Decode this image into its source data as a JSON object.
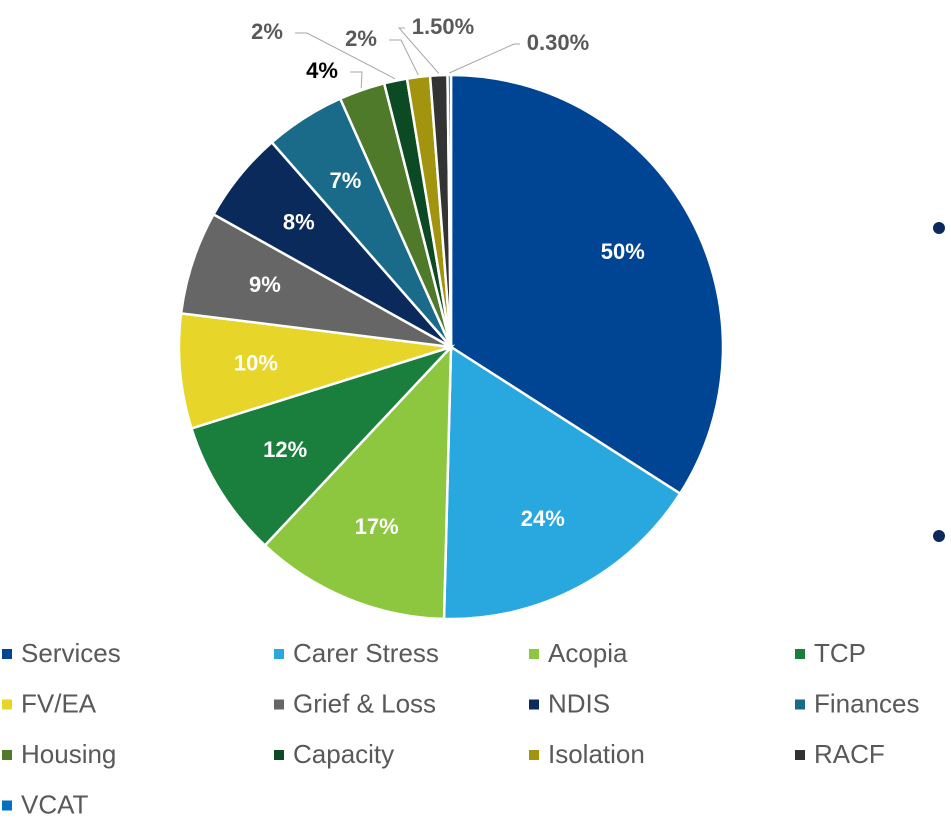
{
  "chart_data": {
    "type": "pie",
    "categories": [
      "Services",
      "Carer Stress",
      "Acopia",
      "TCP",
      "FV/EA",
      "Grief & Loss",
      "NDIS",
      "Finances",
      "Housing",
      "Capacity",
      "Isolation",
      "RACF",
      "VCAT"
    ],
    "values": [
      50,
      24,
      17,
      12,
      10,
      9,
      8,
      7,
      4,
      2,
      2,
      1.5,
      0.3
    ],
    "value_labels": [
      "50%",
      "24%",
      "17%",
      "12%",
      "10%",
      "9%",
      "8%",
      "7%",
      "4%",
      "2%",
      "2%",
      "1.50%",
      "0.30%"
    ],
    "colors": [
      "#004494",
      "#29a8e0",
      "#8dc63f",
      "#1a7f3c",
      "#e8d52a",
      "#666666",
      "#0b2a5c",
      "#1a6b8a",
      "#4e7a2a",
      "#0c4a24",
      "#a39410",
      "#333333",
      "#0070c0"
    ],
    "legend": "bottom"
  }
}
